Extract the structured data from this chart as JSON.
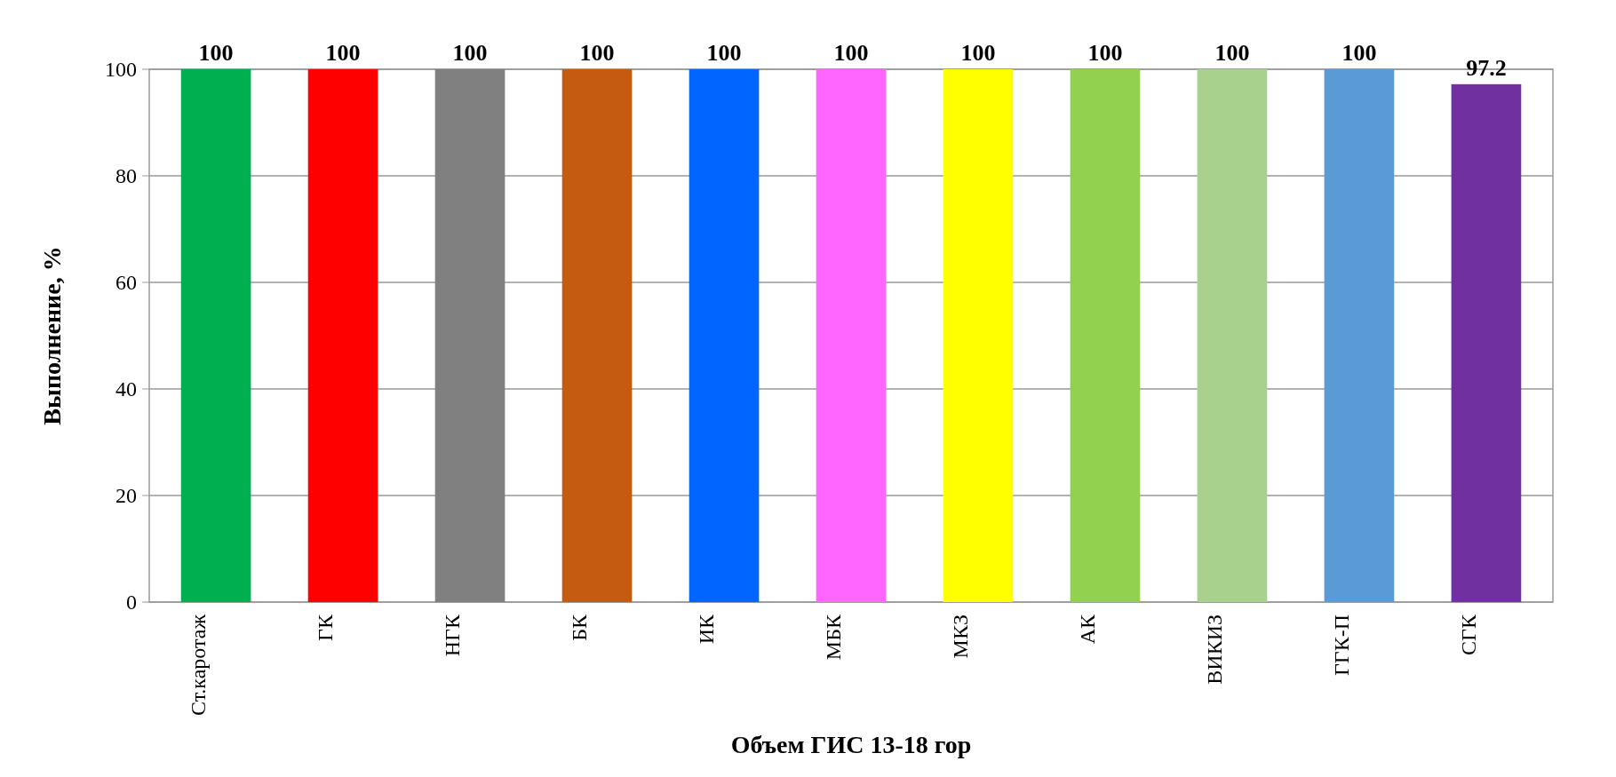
{
  "chart_data": {
    "type": "bar",
    "xlabel": "Объем ГИС 13-18 гор",
    "ylabel": "Выполнение, %",
    "categories": [
      "Ст.каротаж",
      "ГК",
      "НГК",
      "БК",
      "ИК",
      "МБК",
      "МКЗ",
      "АК",
      "ВИКИЗ",
      "ГГК-П",
      "СГК"
    ],
    "values": [
      100,
      100,
      100,
      100,
      100,
      100,
      100,
      100,
      100,
      100,
      97.2
    ],
    "colors": [
      "#00b050",
      "#ff0000",
      "#808080",
      "#c55a11",
      "#0066ff",
      "#ff66ff",
      "#ffff00",
      "#92d050",
      "#a9d18e",
      "#5b9bd5",
      "#7030a0"
    ],
    "ylim": [
      0,
      100
    ],
    "yticks": [
      0,
      20,
      40,
      60,
      80,
      100
    ],
    "grid": "y",
    "data_labels": true
  }
}
